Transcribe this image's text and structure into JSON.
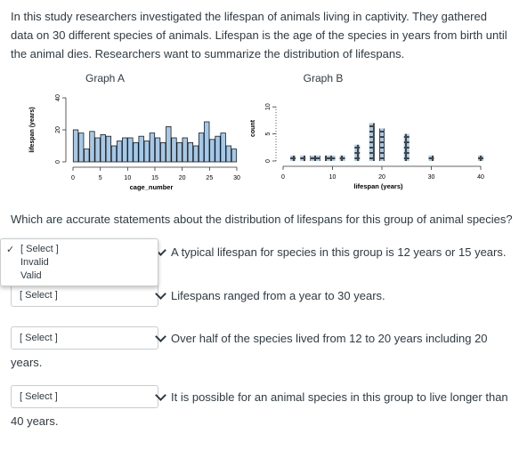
{
  "intro": "In this study researchers investigated the lifespan of animals living in captivity. They gathered data on 30 different species of animals. Lifespan is the age of the species in years from birth until the animal dies. Researchers want to summarize the distribution of lifespans.",
  "graphs": [
    {
      "type": "bar",
      "title": "Graph A",
      "ylabel": "lifespan (years)",
      "xlabel": "cage_number",
      "values": [
        20,
        18,
        8,
        19,
        15,
        17,
        16,
        10,
        13,
        15,
        15,
        12,
        16,
        13,
        18,
        15,
        12,
        22,
        15,
        12,
        15,
        12,
        10,
        18,
        25,
        14,
        16,
        18,
        10,
        8
      ],
      "color": "#a6c8e8",
      "xlim": [
        0,
        30
      ],
      "xticks": [
        0,
        5,
        10,
        15,
        20,
        25,
        30
      ],
      "ylim": [
        0,
        40
      ],
      "yticks": [
        0,
        20,
        40
      ]
    },
    {
      "type": "dot",
      "title": "Graph B",
      "ylabel": "count",
      "xlabel": "lifespan (years)",
      "x": [
        2,
        4,
        6,
        7,
        9,
        10,
        12,
        15,
        18,
        20,
        25,
        30,
        40
      ],
      "counts": [
        1,
        1,
        1,
        1,
        1,
        1,
        1,
        3,
        7,
        6,
        5,
        1,
        1
      ],
      "color": "#a6c8e8",
      "xlim": [
        0,
        40
      ],
      "xticks": [
        0,
        10,
        20,
        30,
        40
      ],
      "ylim": [
        0,
        12
      ],
      "yticks": [
        0,
        5,
        10
      ]
    }
  ],
  "question": "Which are accurate statements about the distribution of lifespans for this group of animal species?",
  "options": [
    "[ Select ]",
    "Invalid",
    "Valid"
  ],
  "items": [
    {
      "select": "[ Select ]",
      "statement": "A typical lifespan for species in this group is 12 years or 15 years."
    },
    {
      "select": "[ Select ]",
      "statement": "Lifespans ranged from a year to 30 years."
    },
    {
      "select": "[ Select ]",
      "statement": "Over half of the species lived from 12 to 20 years including 20",
      "tail": "years."
    },
    {
      "select": "[ Select ]",
      "statement": "It is possible for an animal species in this group to live longer than",
      "tail": "40 years."
    }
  ]
}
